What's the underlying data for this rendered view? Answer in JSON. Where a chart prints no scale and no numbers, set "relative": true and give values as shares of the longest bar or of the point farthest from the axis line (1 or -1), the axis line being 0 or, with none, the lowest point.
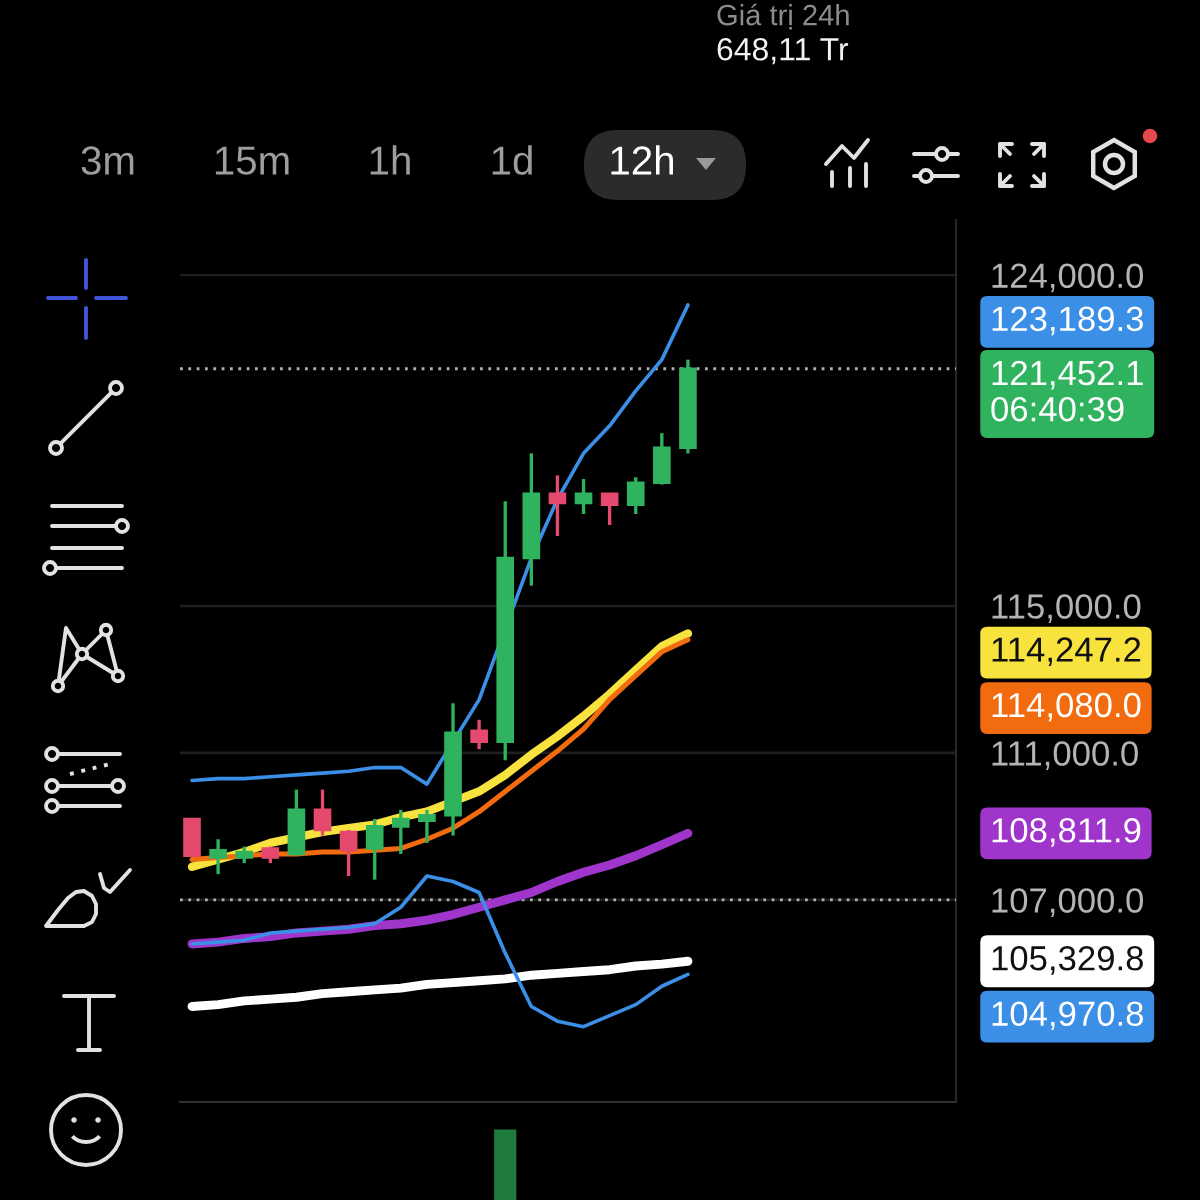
{
  "chart_data": [
    {
      "type": "candlestick",
      "categories": [
        null,
        null,
        null,
        null,
        null,
        null,
        null,
        null,
        null,
        null,
        null,
        null,
        null,
        null,
        null,
        null,
        null,
        null,
        null,
        null
      ],
      "ylim": [
        101500,
        125500
      ],
      "yticks": [
        {
          "value": 124000,
          "label": "124,000.0"
        },
        {
          "value": 115000,
          "label": "115,000.0"
        },
        {
          "value": 111000,
          "label": "111,000.0"
        },
        {
          "value": 107000,
          "label": "107,000.0"
        }
      ],
      "grid": "y",
      "tick_labels": "y",
      "series": [
        {
          "type": "candlestick",
          "ohlc": [
            [
              109200,
              109200,
              108200,
              108200
            ],
            [
              108150,
              108650,
              107700,
              108350
            ],
            [
              108150,
              108450,
              108000,
              108300
            ],
            [
              108400,
              108450,
              108000,
              108150
            ],
            [
              108250,
              110000,
              108200,
              109450
            ],
            [
              109450,
              110000,
              108750,
              108900
            ],
            [
              108850,
              108900,
              107650,
              108350
            ],
            [
              108400,
              109200,
              107550,
              109000
            ],
            [
              109000,
              109450,
              108250,
              109200
            ],
            [
              109150,
              109450,
              108550,
              109300
            ],
            [
              109300,
              112350,
              108750,
              111550
            ],
            [
              111600,
              111900,
              111100,
              111300
            ],
            [
              111300,
              117850,
              110800,
              116300
            ],
            [
              116300,
              119150,
              115550,
              118050
            ],
            [
              118050,
              118550,
              116900,
              117800
            ],
            [
              117800,
              118450,
              117500,
              118050
            ],
            [
              118050,
              118050,
              117200,
              117750
            ],
            [
              117750,
              118500,
              117500,
              118350
            ],
            [
              118350,
              119700,
              118300,
              119300
            ],
            [
              119300,
              121700,
              119150,
              121452.1
            ]
          ],
          "colors": [
            "#e5496e",
            "#2fb35e",
            "#2fb35e",
            "#e5496e",
            "#2fb35e",
            "#e5496e",
            "#e5496e",
            "#2fb35e",
            "#2fb35e",
            "#2fb35e",
            "#2fb35e",
            "#e5496e",
            "#2fb35e",
            "#2fb35e",
            "#e5496e",
            "#2fb35e",
            "#e5496e",
            "#2fb35e",
            "#2fb35e",
            "#2fb35e"
          ]
        },
        {
          "type": "line",
          "color": "#3b8fe6",
          "values": [
            110250,
            110300,
            110300,
            110350,
            110400,
            110450,
            110500,
            110600,
            110600,
            110150,
            null,
            112450,
            null,
            116300,
            117900,
            119150,
            119900,
            120850,
            121700,
            123189.3
          ]
        },
        {
          "type": "line",
          "color": "#3b8fe6",
          "values": [
            105800,
            105850,
            105900,
            106100,
            106150,
            106200,
            106250,
            106350,
            106800,
            107650,
            107500,
            107200,
            105550,
            104100,
            103700,
            103550,
            103850,
            104150,
            104650,
            104970.8
          ]
        },
        {
          "type": "line",
          "color": "#f7e23e",
          "values": [
            107900,
            108100,
            108300,
            108550,
            108700,
            108850,
            108950,
            109050,
            109250,
            109400,
            null,
            109950,
            110400,
            110950,
            111450,
            112000,
            112600,
            113250,
            113900,
            114247.2
          ]
        },
        {
          "type": "line",
          "color": "#f26b0f",
          "values": [
            108100,
            108150,
            108200,
            108250,
            108250,
            108300,
            108300,
            108350,
            108400,
            108650,
            108950,
            109400,
            109950,
            110500,
            111050,
            111650,
            112450,
            113100,
            113750,
            114080.0
          ]
        },
        {
          "type": "line",
          "color": "#a035cc",
          "values": [
            105800,
            105850,
            105950,
            106000,
            106100,
            106150,
            106200,
            106300,
            106350,
            106450,
            106600,
            106800,
            107000,
            107200,
            107500,
            107750,
            107950,
            108200,
            108500,
            108811.9
          ]
        },
        {
          "type": "line",
          "color": "#ffffff",
          "values": [
            104100,
            104150,
            104250,
            104300,
            104350,
            104450,
            104500,
            104550,
            104600,
            104700,
            104750,
            104800,
            104850,
            104950,
            105000,
            105050,
            105100,
            105200,
            105250,
            105329.8
          ]
        }
      ],
      "ref_lines": [
        {
          "axis": "y",
          "value": 121452.1,
          "label": "121,452.1\n06:40:39",
          "color": "#b0b0b0",
          "line_style": "dotted"
        },
        {
          "axis": "y",
          "value": 107000,
          "color": "#b0b0b0",
          "line_style": "dotted"
        }
      ],
      "annotations": [
        "Giá trị 24h",
        "648,11 Tr",
        "3m",
        "15m",
        "1h",
        "1d",
        "12h",
        "123,189.3",
        "104,970.8",
        "114,247.2",
        "114,080.0",
        "108,811.9",
        "105,329.8"
      ]
    },
    {
      "type": "bar",
      "categories": [
        null,
        null,
        null,
        null,
        null,
        null,
        null,
        null,
        null,
        null,
        null,
        null,
        null,
        null,
        null,
        null,
        null,
        null,
        null,
        null
      ],
      "values": [
        null,
        null,
        null,
        null,
        null,
        null,
        null,
        null,
        null,
        null,
        null,
        null,
        1,
        null,
        null,
        null,
        null,
        null,
        null,
        null
      ],
      "color": "#1f7a3d",
      "relative": true
    }
  ]
}
